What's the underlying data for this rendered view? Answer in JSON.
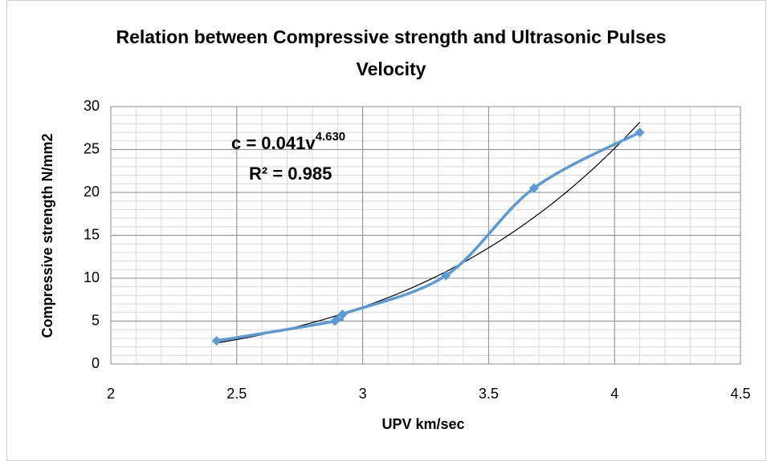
{
  "chart_data": {
    "type": "scatter",
    "title": "Relation between Compressive strength and Ultrasonic Pulses Velocity",
    "x_label": "UPV km/sec",
    "y_label": "Compressive strength N/mm2",
    "series": [
      {
        "name": "Compressive strength",
        "color": "#5b9bd5",
        "x": [
          2.42,
          2.89,
          2.92,
          3.33,
          3.68,
          4.1
        ],
        "values": [
          2.7,
          5.0,
          5.8,
          10.3,
          20.5,
          27.0
        ]
      }
    ],
    "trendline": {
      "type": "power",
      "coefficient": 0.041,
      "exponent": 4.63,
      "color": "#000000"
    },
    "annotations": {
      "equation": "c = 0.041v",
      "equation_exponent": "4.630",
      "r_squared": "R² = 0.985"
    },
    "xlim": [
      2,
      4.5
    ],
    "xticks": [
      2,
      2.5,
      3,
      3.5,
      4,
      4.5
    ],
    "ylim": [
      0,
      30
    ],
    "yticks": [
      0,
      5,
      10,
      15,
      20,
      25,
      30
    ],
    "grid": true,
    "minor_grid": {
      "x_step": 0.1,
      "y_step": 1
    }
  }
}
